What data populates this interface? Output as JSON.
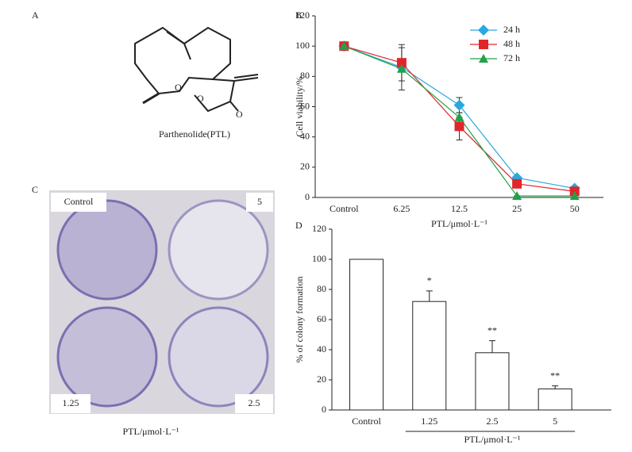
{
  "panels": {
    "A": {
      "label": "A",
      "caption": "Parthenolide(PTL)",
      "atoms": [
        "O",
        "O",
        "O"
      ]
    },
    "C": {
      "label": "C",
      "wells": [
        "Control",
        "5",
        "1.25",
        "2.5"
      ],
      "xlabel": "PTL/μmol·L⁻¹"
    }
  },
  "chart_data": [
    {
      "type": "line",
      "title": "B",
      "ylabel": "Cell viability/%",
      "xlabel": "PTL/μmol·L⁻¹",
      "categories": [
        "Control",
        "6.25",
        "12.5",
        "25",
        "50"
      ],
      "series": [
        {
          "name": "24 h",
          "color": "#29a9e0",
          "marker": "diamond",
          "values": [
            100,
            86,
            61,
            13,
            6
          ],
          "errors": [
            0,
            0,
            5,
            0,
            0
          ]
        },
        {
          "name": "48 h",
          "color": "#e0262b",
          "marker": "square",
          "values": [
            100,
            89,
            47,
            9,
            4
          ],
          "errors": [
            0,
            12,
            9,
            0,
            0
          ]
        },
        {
          "name": "72 h",
          "color": "#22a14a",
          "marker": "triangle",
          "values": [
            100,
            85,
            53,
            1,
            1
          ],
          "errors": [
            0,
            14,
            0,
            0,
            0
          ]
        }
      ],
      "ylim": [
        0,
        120
      ],
      "yticks": [
        0,
        20,
        40,
        60,
        80,
        100,
        120
      ],
      "legend": "upper right"
    },
    {
      "type": "bar",
      "title": "D",
      "ylabel": "% of colony formation",
      "xlabel": "PTL/μmol·L⁻¹",
      "categories": [
        "Control",
        "1.25",
        "2.5",
        "5"
      ],
      "values": [
        100,
        72,
        38,
        14
      ],
      "errors": [
        0,
        7,
        8,
        2
      ],
      "annotations": [
        null,
        "*",
        "**",
        "**"
      ],
      "color": "#ffffff",
      "ylim": [
        0,
        120
      ],
      "yticks": [
        0,
        20,
        40,
        60,
        80,
        100,
        120
      ]
    }
  ]
}
